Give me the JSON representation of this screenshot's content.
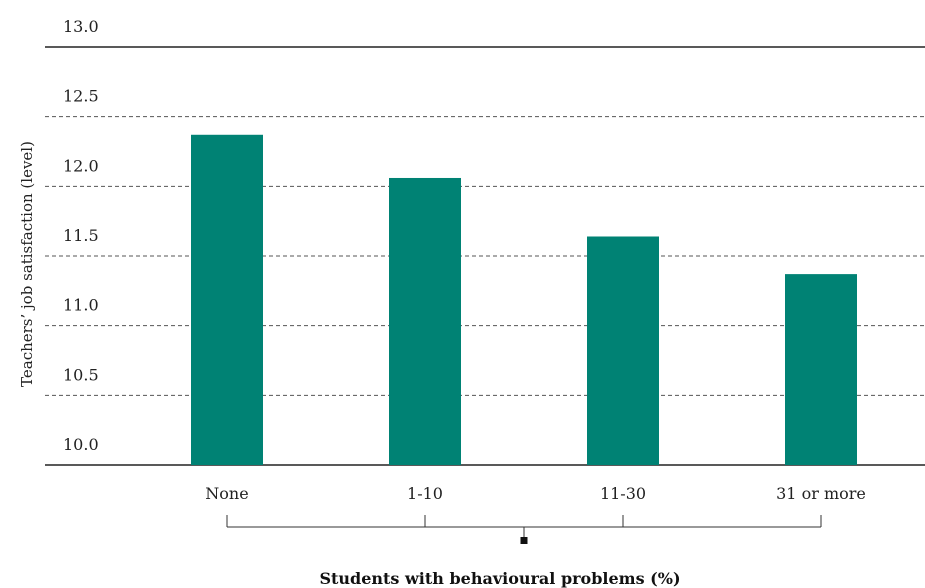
{
  "chart_data": {
    "type": "bar",
    "categories": [
      "None",
      "1-10",
      "11-30",
      "31 or more"
    ],
    "values": [
      12.37,
      12.06,
      11.64,
      11.37
    ],
    "xlabel": "Students with behavioural problems (%)",
    "ylabel": "Teachers’ job satisfaction (level)",
    "ylim": [
      10.0,
      13.0
    ],
    "yticks": [
      "10.0",
      "10.5",
      "11.0",
      "11.5",
      "12.0",
      "12.5",
      "13.0"
    ],
    "grid": true,
    "bar_color": "#008274"
  }
}
